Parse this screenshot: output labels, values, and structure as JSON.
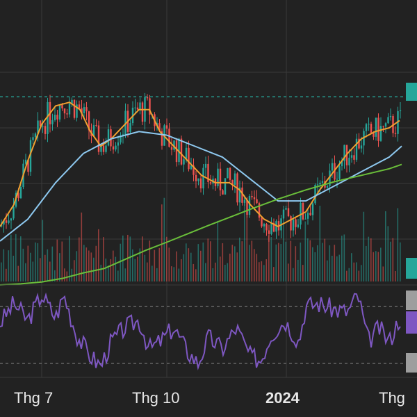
{
  "colors": {
    "background": "#222222",
    "grid": "#3a3a3a",
    "up": "#26a69a",
    "down": "#ef5350",
    "ma_fast": "#f0a030",
    "ma_mid": "#8ec9f0",
    "ma_slow": "#6abf3a",
    "rsi": "#7e57c2",
    "price_line": "#26a69a"
  },
  "x_axis_labels": [
    {
      "text": "Thg 7",
      "bold": false
    },
    {
      "text": "Thg 10",
      "bold": false
    },
    {
      "text": "2024",
      "bold": true
    },
    {
      "text": "Thg",
      "bold": false
    }
  ],
  "chart_data": {
    "type": "candlestick",
    "panes": [
      "price",
      "volume",
      "rsi"
    ],
    "price": {
      "ylim": [
        22,
        100
      ],
      "last_price_line": 73.5,
      "indicators": [
        {
          "color": "ma_fast",
          "x": [
            0,
            20,
            40,
            60,
            80,
            100,
            115,
            130,
            145,
            160,
            180,
            200,
            215,
            230,
            250,
            270,
            290,
            310,
            330,
            345,
            360,
            380,
            400,
            420,
            440,
            460,
            480,
            500,
            520,
            540,
            560,
            575
          ],
          "y": [
            38,
            44,
            56,
            66,
            71,
            72,
            70,
            64,
            60,
            62,
            66,
            70,
            70,
            64,
            60,
            56,
            52,
            50,
            50,
            48,
            44,
            40,
            38,
            40,
            42,
            48,
            53,
            58,
            62,
            64,
            65,
            67
          ]
        },
        {
          "color": "ma_mid",
          "x": [
            0,
            40,
            80,
            120,
            160,
            200,
            240,
            280,
            320,
            360,
            400,
            440,
            480,
            520,
            560,
            578
          ],
          "y": [
            34,
            40,
            50,
            58,
            62,
            64,
            63,
            60,
            57,
            51,
            45,
            45,
            49,
            53,
            57,
            60
          ]
        },
        {
          "color": "ma_slow",
          "x": [
            0,
            30,
            60,
            90,
            120,
            150,
            180,
            210,
            240,
            270,
            300,
            330,
            360,
            400,
            440,
            480,
            520,
            560,
            578
          ],
          "y": [
            22,
            22.3,
            22.8,
            23.8,
            25.3,
            26.5,
            29,
            31.5,
            33.7,
            36,
            38.3,
            40.5,
            42.7,
            45.5,
            48,
            50.2,
            52,
            53.8,
            55
          ]
        }
      ]
    },
    "rsi": {
      "ylim": [
        20,
        85
      ],
      "guide_levels": [
        70,
        30
      ]
    },
    "candles": "procedural"
  }
}
